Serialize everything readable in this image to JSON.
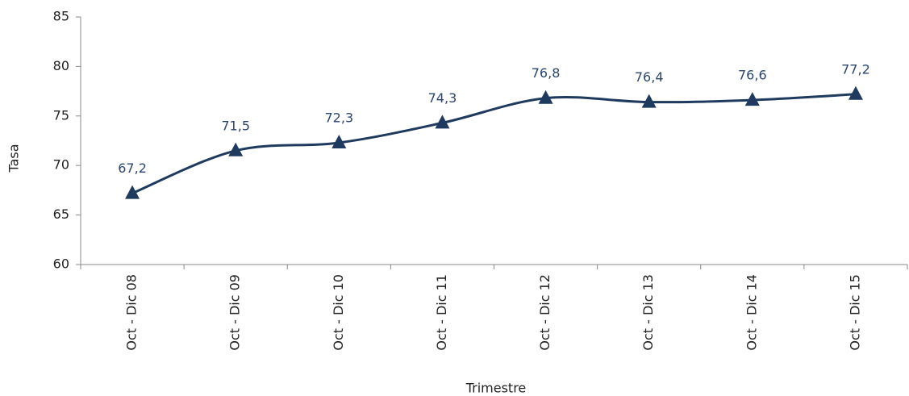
{
  "chart_data": {
    "type": "line",
    "x_label": "Trimestre",
    "y_label": "Tasa",
    "categories": [
      "Oct - Dic 08",
      "Oct - Dic 09",
      "Oct - Dic 10",
      "Oct - Dic 11",
      "Oct - Dic 12",
      "Oct - Dic 13",
      "Oct - Dic 14",
      "Oct - Dic 15"
    ],
    "series": [
      {
        "name": "Tasa",
        "color": "#1f3a5f",
        "values": [
          67.2,
          71.5,
          72.3,
          74.3,
          76.8,
          76.4,
          76.6,
          77.2
        ],
        "value_labels": [
          "67,2",
          "71,5",
          "72,3",
          "74,3",
          "76,8",
          "76,4",
          "76,6",
          "77,2"
        ]
      }
    ],
    "ylim": [
      60,
      85
    ],
    "yticks": [
      60,
      65,
      70,
      75,
      80,
      85
    ],
    "grid": false,
    "smooth": true,
    "marker": "triangle"
  }
}
